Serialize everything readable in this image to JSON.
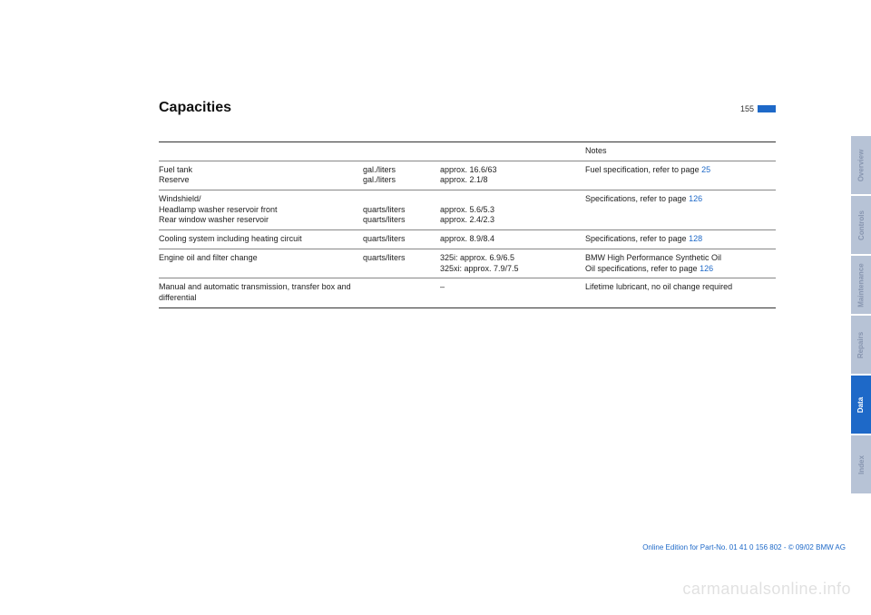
{
  "meta": {
    "title": "Capacities",
    "page_number": "155",
    "footer": "Online Edition for Part-No. 01 41 0 156 802 - © 09/02 BMW AG",
    "watermark": "carmanualsonline.info",
    "link_color": "#1e69c8",
    "tab_inactive_bg": "#b7c3d6",
    "tab_active_bg": "#1e69c8"
  },
  "table": {
    "header": {
      "c1": "",
      "c2": "",
      "c3": "",
      "c4": "Notes"
    },
    "rows": [
      {
        "c1": "Fuel tank\nReserve",
        "c2": "gal./liters\ngal./liters",
        "c3": "approx. 16.6/63\napprox. 2.1/8",
        "c4": "Fuel specification, refer to page ",
        "c4_link": "25"
      },
      {
        "c1": "Windshield/\nHeadlamp washer reservoir front\nRear window washer reservoir",
        "c2": "\nquarts/liters\nquarts/liters",
        "c3": "\napprox. 5.6/5.3\napprox. 2.4/2.3",
        "c4": "Specifications, refer to page ",
        "c4_link": "126"
      },
      {
        "c1": "Cooling system including heating circuit",
        "c2": "quarts/liters",
        "c3": "approx. 8.9/8.4",
        "c4": "Specifications, refer to page ",
        "c4_link": "128"
      },
      {
        "c1": "Engine oil and filter change",
        "c2": "quarts/liters",
        "c3": "325i: approx. 6.9/6.5\n325xi: approx. 7.9/7.5",
        "c4": "BMW High Performance Synthetic Oil\nOil specifications, refer to page ",
        "c4_link": "126"
      },
      {
        "c1": "Manual and automatic transmission, transfer box and differential",
        "c2": "",
        "c3": "–",
        "c4": "Lifetime lubricant, no oil change required",
        "c4_link": ""
      }
    ]
  },
  "tabs": [
    {
      "label": "Overview",
      "active": false
    },
    {
      "label": "Controls",
      "active": false
    },
    {
      "label": "Maintenance",
      "active": false
    },
    {
      "label": "Repairs",
      "active": false
    },
    {
      "label": "Data",
      "active": true
    },
    {
      "label": "Index",
      "active": false
    }
  ]
}
